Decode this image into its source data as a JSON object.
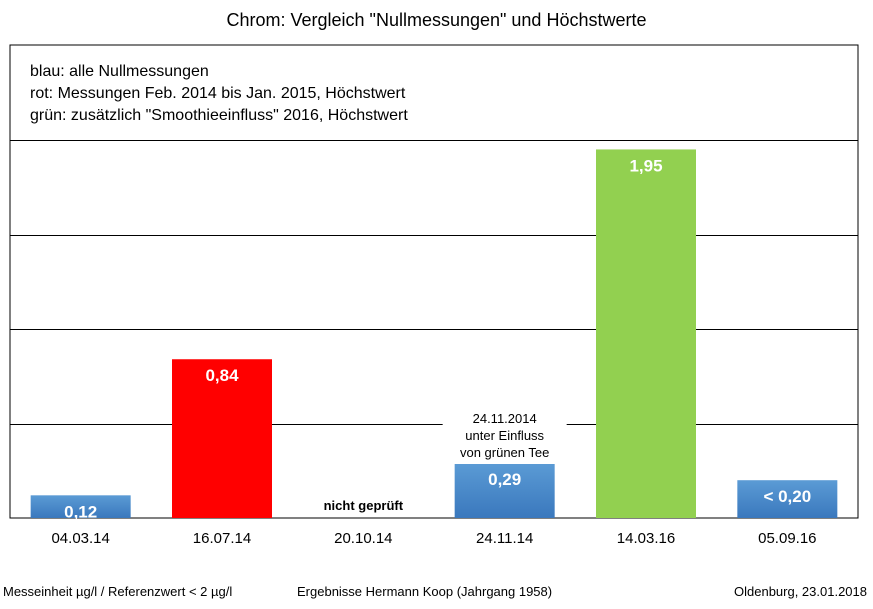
{
  "chart_data": {
    "type": "bar",
    "title": "Chrom: Vergleich \"Nullmessungen\" und Höchstwerte",
    "xlabel": "",
    "ylabel": "",
    "ylim": [
      0,
      2.0
    ],
    "grid": true,
    "legend": [
      "blau: alle Nullmessungen",
      "rot: Messungen Feb. 2014 bis Jan. 2015, Höchstwert",
      "grün: zusätzlich \"Smoothieeinfluss\" 2016, Höchstwert"
    ],
    "categories": [
      "04.03.14",
      "16.07.14",
      "20.10.14",
      "24.11.14",
      "14.03.16",
      "05.09.16"
    ],
    "values": [
      0.12,
      0.84,
      null,
      0.29,
      1.95,
      0.2
    ],
    "value_labels": [
      "0,12",
      "0,84",
      "nicht geprüft",
      "0,29",
      "1,95",
      "< 0,20"
    ],
    "colors": [
      "blue",
      "red",
      "none",
      "blue",
      "green",
      "blue"
    ],
    "palette": {
      "blue_top": "#5b9bd5",
      "blue_bottom": "#3a78bd",
      "red": "#ff0000",
      "green": "#92d050"
    },
    "annotation": {
      "category": "24.11.14",
      "lines": [
        "24.11.2014",
        "unter Einfluss",
        "von grünen Tee"
      ]
    }
  },
  "footer": {
    "left": "Messeinheit µg/l / Referenzwert < 2 µg/l",
    "center": "Ergebnisse Hermann Koop (Jahrgang 1958)",
    "right": "Oldenburg, 23.01.2018"
  }
}
